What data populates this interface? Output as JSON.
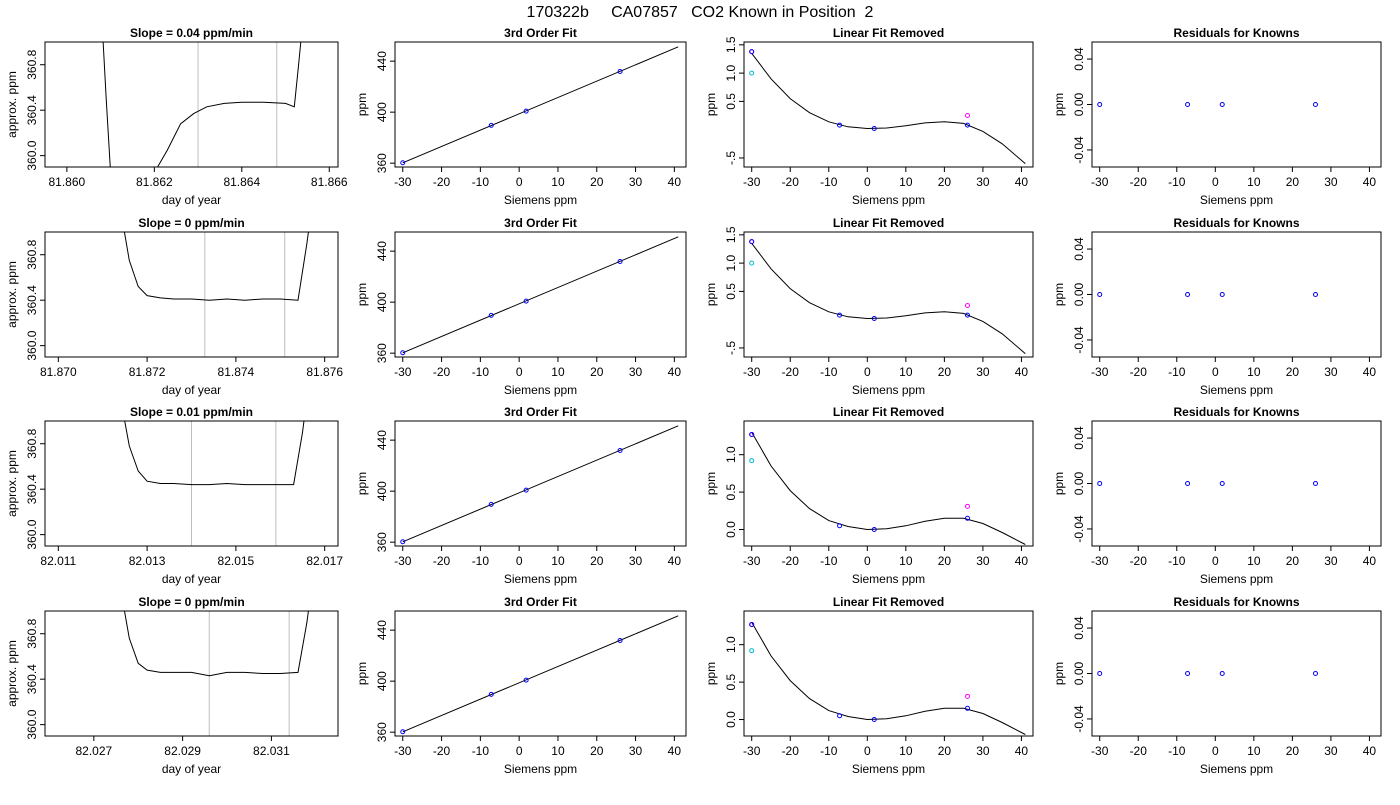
{
  "figure_title": "170322b     CA07857   CO2 Known in Position  2",
  "colors": {
    "trace": "#000000",
    "window_line": "#bebebe",
    "known_point": "#0000ff",
    "measured_point": "#ff00ff",
    "secondary_point": "#00bcd4",
    "frame": "#000000"
  },
  "chart_data": [
    {
      "type": "line",
      "row": 1,
      "title": "Slope =  0.04  ppm/min",
      "xlabel": "day of year",
      "ylabel": "approx. ppm",
      "xlim": [
        81.8595,
        81.8662
      ],
      "ylim": [
        359.9,
        361.0
      ],
      "xticks": [
        81.86,
        81.862,
        81.864,
        81.866
      ],
      "xtick_labels": [
        "81.860",
        "81.862",
        "81.864",
        "81.866"
      ],
      "yticks": [
        360.0,
        360.4,
        360.8
      ],
      "ytick_labels": [
        "360.0",
        "360.4",
        "360.8"
      ],
      "window_lines": [
        81.863,
        81.8648
      ],
      "x": [
        81.8608,
        81.8609,
        81.861,
        81.8615,
        81.862,
        81.8623,
        81.8626,
        81.8629,
        81.8632,
        81.8636,
        81.864,
        81.8645,
        81.865,
        81.8652,
        81.8653,
        81.8654
      ],
      "y": [
        361.2,
        360.5,
        359.85,
        359.85,
        359.85,
        360.05,
        360.28,
        360.37,
        360.43,
        360.46,
        360.47,
        360.47,
        360.46,
        360.43,
        360.8,
        361.2
      ]
    },
    {
      "type": "scatter",
      "row": 1,
      "title": "3rd Order Fit",
      "xlabel": "Siemens ppm",
      "ylabel": "ppm",
      "xlim": [
        -32,
        43
      ],
      "ylim": [
        357,
        455
      ],
      "xticks": [
        -30,
        -20,
        -10,
        0,
        10,
        20,
        30,
        40
      ],
      "xtick_labels": [
        "-30",
        "-20",
        "-10",
        "0",
        "10",
        "20",
        "30",
        "40"
      ],
      "yticks": [
        360,
        400,
        440
      ],
      "ytick_labels": [
        "360",
        "400",
        "440"
      ],
      "fit_line": {
        "x": [
          -30,
          41
        ],
        "y": [
          360.3,
          451.2
        ]
      },
      "points": {
        "x": [
          -30,
          -7.2,
          1.8,
          26
        ],
        "y": [
          360.3,
          389.6,
          400.8,
          431.9
        ]
      }
    },
    {
      "type": "scatter",
      "row": 1,
      "title": "Linear Fit Removed",
      "xlabel": "Siemens ppm",
      "ylabel": "ppm",
      "xlim": [
        -32,
        43
      ],
      "ylim": [
        -0.66,
        1.55
      ],
      "xticks": [
        -30,
        -20,
        -10,
        0,
        10,
        20,
        30,
        40
      ],
      "xtick_labels": [
        "-30",
        "-20",
        "-10",
        "0",
        "10",
        "20",
        "30",
        "40"
      ],
      "yticks": [
        -0.5,
        0.5,
        1.0,
        1.5
      ],
      "ytick_labels": [
        "-.5",
        "0.5",
        "1.0",
        "1.5"
      ],
      "curve": {
        "x": [
          -30,
          -25,
          -20,
          -15,
          -10,
          -5,
          0,
          5,
          10,
          15,
          20,
          25,
          30,
          35,
          41
        ],
        "y": [
          1.35,
          0.9,
          0.55,
          0.3,
          0.14,
          0.05,
          0.02,
          0.03,
          0.07,
          0.12,
          0.14,
          0.11,
          -0.03,
          -0.25,
          -0.6
        ]
      },
      "points": {
        "x": [
          -30,
          -7.2,
          1.8,
          26
        ],
        "y": [
          1.38,
          0.08,
          0.02,
          0.08
        ]
      },
      "measured_points": {
        "x": [
          -30,
          26
        ],
        "y": [
          1.38,
          0.25
        ]
      },
      "secondary_points": {
        "x": [
          -30
        ],
        "y": [
          1.0
        ]
      }
    },
    {
      "type": "scatter",
      "row": 1,
      "title": "Residuals for Knowns",
      "xlabel": "Siemens ppm",
      "ylabel": "ppm",
      "xlim": [
        -32,
        43
      ],
      "ylim": [
        -0.055,
        0.055
      ],
      "xticks": [
        -30,
        -20,
        -10,
        0,
        10,
        20,
        30,
        40
      ],
      "xtick_labels": [
        "-30",
        "-20",
        "-10",
        "0",
        "10",
        "20",
        "30",
        "40"
      ],
      "yticks": [
        -0.04,
        0.0,
        0.04
      ],
      "ytick_labels": [
        "-0.04",
        "0.00",
        "0.04"
      ],
      "points": {
        "x": [
          -30,
          -7.2,
          1.8,
          26
        ],
        "y": [
          0,
          0,
          0,
          0
        ]
      }
    },
    {
      "type": "line",
      "row": 2,
      "title": "Slope =  0  ppm/min",
      "xlabel": "day of year",
      "ylabel": "approx. ppm",
      "xlim": [
        81.8697,
        81.8763
      ],
      "ylim": [
        359.9,
        361.0
      ],
      "xticks": [
        81.87,
        81.872,
        81.874,
        81.876
      ],
      "xtick_labels": [
        "81.870",
        "81.872",
        "81.874",
        "81.876"
      ],
      "yticks": [
        360.0,
        360.4,
        360.8
      ],
      "ytick_labels": [
        "360.0",
        "360.4",
        "360.8"
      ],
      "window_lines": [
        81.8733,
        81.8751
      ],
      "x": [
        81.8714,
        81.8716,
        81.8718,
        81.872,
        81.8723,
        81.8726,
        81.873,
        81.8734,
        81.8738,
        81.8742,
        81.8746,
        81.875,
        81.8754,
        81.8756,
        81.8757
      ],
      "y": [
        361.2,
        360.75,
        360.52,
        360.44,
        360.42,
        360.41,
        360.41,
        360.4,
        360.41,
        360.4,
        360.41,
        360.41,
        360.4,
        360.9,
        361.2
      ]
    },
    {
      "type": "scatter",
      "row": 2,
      "title": "3rd Order Fit",
      "xlabel": "Siemens ppm",
      "ylabel": "ppm",
      "xlim": [
        -32,
        43
      ],
      "ylim": [
        357,
        455
      ],
      "xticks": [
        -30,
        -20,
        -10,
        0,
        10,
        20,
        30,
        40
      ],
      "xtick_labels": [
        "-30",
        "-20",
        "-10",
        "0",
        "10",
        "20",
        "30",
        "40"
      ],
      "yticks": [
        360,
        400,
        440
      ],
      "ytick_labels": [
        "360",
        "400",
        "440"
      ],
      "fit_line": {
        "x": [
          -30,
          41
        ],
        "y": [
          360.3,
          451.2
        ]
      },
      "points": {
        "x": [
          -30,
          -7.2,
          1.8,
          26
        ],
        "y": [
          360.3,
          389.6,
          400.8,
          431.9
        ]
      }
    },
    {
      "type": "scatter",
      "row": 2,
      "title": "Linear Fit Removed",
      "xlabel": "Siemens ppm",
      "ylabel": "ppm",
      "xlim": [
        -32,
        43
      ],
      "ylim": [
        -0.66,
        1.55
      ],
      "xticks": [
        -30,
        -20,
        -10,
        0,
        10,
        20,
        30,
        40
      ],
      "xtick_labels": [
        "-30",
        "-20",
        "-10",
        "0",
        "10",
        "20",
        "30",
        "40"
      ],
      "yticks": [
        -0.5,
        0.5,
        1.0,
        1.5
      ],
      "ytick_labels": [
        "-.5",
        "0.5",
        "1.0",
        "1.5"
      ],
      "curve": {
        "x": [
          -30,
          -25,
          -20,
          -15,
          -10,
          -5,
          0,
          5,
          10,
          15,
          20,
          25,
          30,
          35,
          41
        ],
        "y": [
          1.35,
          0.9,
          0.55,
          0.3,
          0.14,
          0.05,
          0.02,
          0.03,
          0.07,
          0.12,
          0.14,
          0.11,
          -0.03,
          -0.25,
          -0.6
        ]
      },
      "points": {
        "x": [
          -30,
          -7.2,
          1.8,
          26
        ],
        "y": [
          1.38,
          0.08,
          0.02,
          0.08
        ]
      },
      "measured_points": {
        "x": [
          -30,
          26
        ],
        "y": [
          1.38,
          0.25
        ]
      },
      "secondary_points": {
        "x": [
          -30
        ],
        "y": [
          1.0
        ]
      }
    },
    {
      "type": "scatter",
      "row": 2,
      "title": "Residuals for Knowns",
      "xlabel": "Siemens ppm",
      "ylabel": "ppm",
      "xlim": [
        -32,
        43
      ],
      "ylim": [
        -0.055,
        0.055
      ],
      "xticks": [
        -30,
        -20,
        -10,
        0,
        10,
        20,
        30,
        40
      ],
      "xtick_labels": [
        "-30",
        "-20",
        "-10",
        "0",
        "10",
        "20",
        "30",
        "40"
      ],
      "yticks": [
        -0.04,
        0.0,
        0.04
      ],
      "ytick_labels": [
        "-0.04",
        "0.00",
        "0.04"
      ],
      "points": {
        "x": [
          -30,
          -7.2,
          1.8,
          26
        ],
        "y": [
          0,
          0,
          0,
          0
        ]
      }
    },
    {
      "type": "line",
      "row": 3,
      "title": "Slope =  0.01  ppm/min",
      "xlabel": "day of year",
      "ylabel": "approx. ppm",
      "xlim": [
        82.0107,
        82.0173
      ],
      "ylim": [
        359.9,
        361.0
      ],
      "xticks": [
        82.011,
        82.013,
        82.015,
        82.017
      ],
      "xtick_labels": [
        "82.011",
        "82.013",
        "82.015",
        "82.017"
      ],
      "yticks": [
        360.0,
        360.4,
        360.8
      ],
      "ytick_labels": [
        "360.0",
        "360.4",
        "360.8"
      ],
      "window_lines": [
        82.014,
        82.0159
      ],
      "x": [
        82.0124,
        82.0126,
        82.0128,
        82.013,
        82.0133,
        82.0136,
        82.014,
        82.0144,
        82.0148,
        82.0152,
        82.0156,
        82.016,
        82.0163,
        82.0165,
        82.0166
      ],
      "y": [
        361.2,
        360.78,
        360.56,
        360.47,
        360.45,
        360.45,
        360.44,
        360.44,
        360.45,
        360.44,
        360.44,
        360.44,
        360.44,
        360.9,
        361.2
      ]
    },
    {
      "type": "scatter",
      "row": 3,
      "title": "3rd Order Fit",
      "xlabel": "Siemens ppm",
      "ylabel": "ppm",
      "xlim": [
        -32,
        43
      ],
      "ylim": [
        357,
        455
      ],
      "xticks": [
        -30,
        -20,
        -10,
        0,
        10,
        20,
        30,
        40
      ],
      "xtick_labels": [
        "-30",
        "-20",
        "-10",
        "0",
        "10",
        "20",
        "30",
        "40"
      ],
      "yticks": [
        360,
        400,
        440
      ],
      "ytick_labels": [
        "360",
        "400",
        "440"
      ],
      "fit_line": {
        "x": [
          -30,
          41
        ],
        "y": [
          360.3,
          451.2
        ]
      },
      "points": {
        "x": [
          -30,
          -7.2,
          1.8,
          26
        ],
        "y": [
          360.3,
          389.6,
          400.8,
          431.9
        ]
      }
    },
    {
      "type": "scatter",
      "row": 3,
      "title": "Linear Fit Removed",
      "xlabel": "Siemens ppm",
      "ylabel": "ppm",
      "xlim": [
        -32,
        43
      ],
      "ylim": [
        -0.22,
        1.45
      ],
      "xticks": [
        -30,
        -20,
        -10,
        0,
        10,
        20,
        30,
        40
      ],
      "xtick_labels": [
        "-30",
        "-20",
        "-10",
        "0",
        "10",
        "20",
        "30",
        "40"
      ],
      "yticks": [
        0.0,
        0.5,
        1.0
      ],
      "ytick_labels": [
        "0.0",
        "0.5",
        "1.0"
      ],
      "curve": {
        "x": [
          -30,
          -25,
          -20,
          -15,
          -10,
          -5,
          0,
          5,
          10,
          15,
          20,
          25,
          30,
          35,
          41
        ],
        "y": [
          1.3,
          0.85,
          0.52,
          0.28,
          0.12,
          0.04,
          0.0,
          0.01,
          0.05,
          0.11,
          0.15,
          0.15,
          0.08,
          -0.04,
          -0.2
        ]
      },
      "points": {
        "x": [
          -30,
          -7.2,
          1.8,
          26
        ],
        "y": [
          1.27,
          0.05,
          0.0,
          0.15
        ]
      },
      "measured_points": {
        "x": [
          -30,
          26
        ],
        "y": [
          1.27,
          0.31
        ]
      },
      "secondary_points": {
        "x": [
          -30
        ],
        "y": [
          0.92
        ]
      }
    },
    {
      "type": "scatter",
      "row": 3,
      "title": "Residuals for Knowns",
      "xlabel": "Siemens ppm",
      "ylabel": "ppm",
      "xlim": [
        -32,
        43
      ],
      "ylim": [
        -0.055,
        0.055
      ],
      "xticks": [
        -30,
        -20,
        -10,
        0,
        10,
        20,
        30,
        40
      ],
      "xtick_labels": [
        "-30",
        "-20",
        "-10",
        "0",
        "10",
        "20",
        "30",
        "40"
      ],
      "yticks": [
        -0.04,
        0.0,
        0.04
      ],
      "ytick_labels": [
        "-0.04",
        "0.00",
        "0.04"
      ],
      "points": {
        "x": [
          -30,
          -7.2,
          1.8,
          26
        ],
        "y": [
          0,
          0,
          0,
          0
        ]
      }
    },
    {
      "type": "line",
      "row": 4,
      "title": "Slope =  0  ppm/min",
      "xlabel": "day of year",
      "ylabel": "approx. ppm",
      "xlim": [
        82.0259,
        82.0325
      ],
      "ylim": [
        359.9,
        361.0
      ],
      "xticks": [
        82.027,
        82.029,
        82.031
      ],
      "xtick_labels": [
        "82.027",
        "82.029",
        "82.031"
      ],
      "yticks": [
        360.0,
        360.4,
        360.8
      ],
      "ytick_labels": [
        "360.0",
        "360.4",
        "360.8"
      ],
      "window_lines": [
        82.0296,
        82.0314
      ],
      "x": [
        82.0276,
        82.0278,
        82.028,
        82.0282,
        82.0285,
        82.0288,
        82.0292,
        82.0296,
        82.03,
        82.0304,
        82.0308,
        82.0312,
        82.0316,
        82.0318,
        82.0319
      ],
      "y": [
        361.2,
        360.76,
        360.54,
        360.48,
        360.46,
        360.46,
        360.46,
        360.43,
        360.46,
        360.46,
        360.45,
        360.45,
        360.46,
        360.9,
        361.2
      ]
    },
    {
      "type": "scatter",
      "row": 4,
      "title": "3rd Order Fit",
      "xlabel": "Siemens ppm",
      "ylabel": "ppm",
      "xlim": [
        -32,
        43
      ],
      "ylim": [
        357,
        455
      ],
      "xticks": [
        -30,
        -20,
        -10,
        0,
        10,
        20,
        30,
        40
      ],
      "xtick_labels": [
        "-30",
        "-20",
        "-10",
        "0",
        "10",
        "20",
        "30",
        "40"
      ],
      "yticks": [
        360,
        400,
        440
      ],
      "ytick_labels": [
        "360",
        "400",
        "440"
      ],
      "fit_line": {
        "x": [
          -30,
          41
        ],
        "y": [
          360.3,
          451.2
        ]
      },
      "points": {
        "x": [
          -30,
          -7.2,
          1.8,
          26
        ],
        "y": [
          360.3,
          389.6,
          400.8,
          431.9
        ]
      }
    },
    {
      "type": "scatter",
      "row": 4,
      "title": "Linear Fit Removed",
      "xlabel": "Siemens ppm",
      "ylabel": "ppm",
      "xlim": [
        -32,
        43
      ],
      "ylim": [
        -0.22,
        1.45
      ],
      "xticks": [
        -30,
        -20,
        -10,
        0,
        10,
        20,
        30,
        40
      ],
      "xtick_labels": [
        "-30",
        "-20",
        "-10",
        "0",
        "10",
        "20",
        "30",
        "40"
      ],
      "yticks": [
        0.0,
        0.5,
        1.0
      ],
      "ytick_labels": [
        "0.0",
        "0.5",
        "1.0"
      ],
      "curve": {
        "x": [
          -30,
          -25,
          -20,
          -15,
          -10,
          -5,
          0,
          5,
          10,
          15,
          20,
          25,
          30,
          35,
          41
        ],
        "y": [
          1.3,
          0.85,
          0.52,
          0.28,
          0.12,
          0.04,
          0.0,
          0.01,
          0.05,
          0.11,
          0.15,
          0.15,
          0.08,
          -0.04,
          -0.2
        ]
      },
      "points": {
        "x": [
          -30,
          -7.2,
          1.8,
          26
        ],
        "y": [
          1.27,
          0.05,
          0.0,
          0.15
        ]
      },
      "measured_points": {
        "x": [
          -30,
          26
        ],
        "y": [
          1.27,
          0.31
        ]
      },
      "secondary_points": {
        "x": [
          -30
        ],
        "y": [
          0.92
        ]
      }
    },
    {
      "type": "scatter",
      "row": 4,
      "title": "Residuals for Knowns",
      "xlabel": "Siemens ppm",
      "ylabel": "ppm",
      "xlim": [
        -32,
        43
      ],
      "ylim": [
        -0.055,
        0.055
      ],
      "xticks": [
        -30,
        -20,
        -10,
        0,
        10,
        20,
        30,
        40
      ],
      "xtick_labels": [
        "-30",
        "-20",
        "-10",
        "0",
        "10",
        "20",
        "30",
        "40"
      ],
      "yticks": [
        -0.04,
        0.0,
        0.04
      ],
      "ytick_labels": [
        "-0.04",
        "0.00",
        "0.04"
      ],
      "points": {
        "x": [
          -30,
          -7.2,
          1.8,
          26
        ],
        "y": [
          0,
          0,
          0,
          0
        ]
      }
    }
  ]
}
